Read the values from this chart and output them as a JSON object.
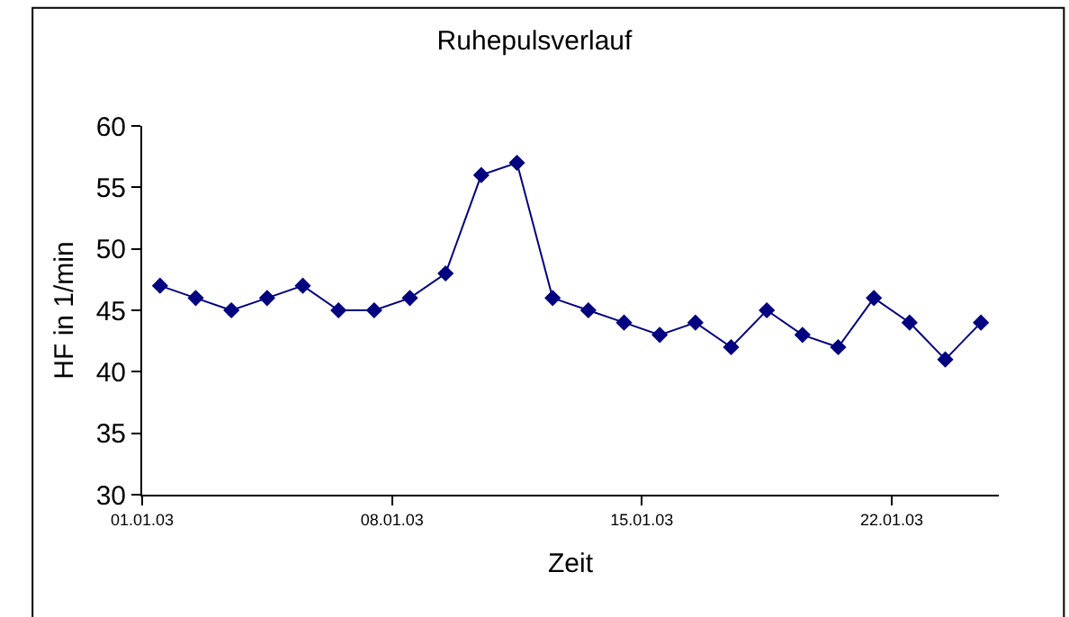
{
  "chart_data": {
    "type": "line",
    "title": "Ruhepulsverlauf",
    "xlabel": "Zeit",
    "ylabel": "HF in 1/min",
    "x": [
      "--01-01T12:00",
      "--01-02T12:00",
      "--01-03T12:00",
      "--01-04T12:00",
      "--01-05T12:00",
      "--01-06T12:00",
      "--01-07T12:00",
      "--01-08T12:00",
      "--01-09T12:00",
      "--01-10T12:00",
      "--01-11T12:00",
      "--01-12T12:00",
      "--01-13T12:00",
      "--01-14T12:00",
      "--01-15T12:00",
      "--01-16T12:00",
      "--01-17T12:00",
      "--01-18T12:00",
      "--01-19T12:00",
      "--01-20T12:00",
      "--01-21T12:00",
      "--01-22T12:00",
      "--01-23T12:00",
      "--01-24T12:00"
    ],
    "series": [
      {
        "color": "#000080",
        "values": [
          47,
          46,
          45,
          46,
          47,
          45,
          45,
          46,
          48,
          56,
          57,
          46,
          45,
          44,
          43,
          44,
          42,
          45,
          43,
          42,
          46,
          44,
          41,
          44
        ]
      }
    ],
    "xlim": [
      "--01-01",
      "--01-25"
    ],
    "xticks": [
      {
        "value": "--01-01",
        "label": "01.01.03"
      },
      {
        "value": "--01-08",
        "label": "08.01.03"
      },
      {
        "value": "--01-15",
        "label": "15.01.03"
      },
      {
        "value": "--01-22",
        "label": "22.01.03"
      }
    ],
    "ylim": [
      30,
      60
    ],
    "yticks": [
      30,
      35,
      40,
      45,
      50,
      55,
      60
    ],
    "marker": "diamond",
    "line_style": "solid"
  }
}
